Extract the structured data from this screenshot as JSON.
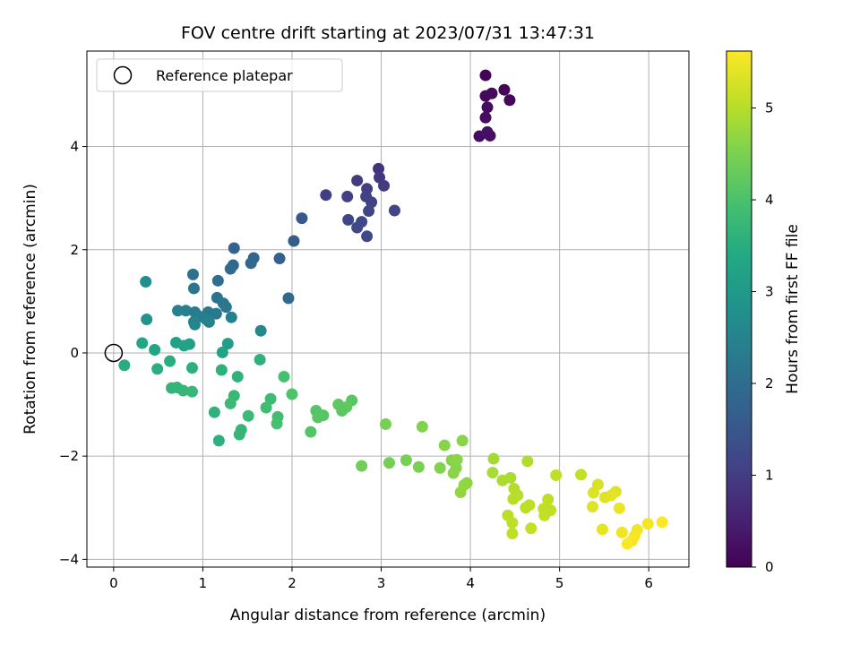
{
  "chart_data": {
    "type": "scatter",
    "title": "FOV centre drift starting at 2023/07/31 13:47:31",
    "xlabel": "Angular distance from reference (arcmin)",
    "ylabel": "Rotation from reference (arcmin)",
    "xlim": [
      -0.3,
      6.45
    ],
    "ylim": [
      -4.15,
      5.85
    ],
    "xticks": [
      0,
      1,
      2,
      3,
      4,
      5,
      6
    ],
    "yticks": [
      -4,
      -2,
      0,
      2,
      4
    ],
    "grid": true,
    "legend": {
      "placement": "top-left",
      "entries": [
        "Reference platepar"
      ]
    },
    "reference_point": {
      "x": 0,
      "y": 0,
      "label": "Reference platepar"
    },
    "colorbar": {
      "label": "Hours from first FF file",
      "colormap": "viridis",
      "range": [
        0,
        5.62
      ],
      "ticks": [
        0,
        1,
        2,
        3,
        4,
        5
      ]
    },
    "points": [
      {
        "x": 4.17,
        "y": 5.38,
        "c": 0.05
      },
      {
        "x": 4.38,
        "y": 5.1,
        "c": 0.08
      },
      {
        "x": 4.44,
        "y": 4.9,
        "c": 0.1
      },
      {
        "x": 4.24,
        "y": 5.03,
        "c": 0.12
      },
      {
        "x": 4.17,
        "y": 4.98,
        "c": 0.14
      },
      {
        "x": 4.19,
        "y": 4.76,
        "c": 0.16
      },
      {
        "x": 4.17,
        "y": 4.56,
        "c": 0.18
      },
      {
        "x": 4.1,
        "y": 4.2,
        "c": 0.2
      },
      {
        "x": 4.19,
        "y": 4.28,
        "c": 0.22
      },
      {
        "x": 4.22,
        "y": 4.21,
        "c": 0.24
      },
      {
        "x": 2.97,
        "y": 3.57,
        "c": 0.85
      },
      {
        "x": 2.98,
        "y": 3.4,
        "c": 0.9
      },
      {
        "x": 2.73,
        "y": 3.34,
        "c": 0.95
      },
      {
        "x": 3.03,
        "y": 3.24,
        "c": 0.98
      },
      {
        "x": 2.84,
        "y": 3.18,
        "c": 1.0
      },
      {
        "x": 2.38,
        "y": 3.06,
        "c": 1.02
      },
      {
        "x": 2.62,
        "y": 3.03,
        "c": 1.05
      },
      {
        "x": 2.83,
        "y": 3.03,
        "c": 1.08
      },
      {
        "x": 2.89,
        "y": 2.92,
        "c": 1.1
      },
      {
        "x": 3.15,
        "y": 2.76,
        "c": 1.12
      },
      {
        "x": 2.86,
        "y": 2.75,
        "c": 1.15
      },
      {
        "x": 2.63,
        "y": 2.58,
        "c": 1.18
      },
      {
        "x": 2.78,
        "y": 2.54,
        "c": 1.2
      },
      {
        "x": 2.73,
        "y": 2.43,
        "c": 1.22
      },
      {
        "x": 2.84,
        "y": 2.26,
        "c": 1.25
      },
      {
        "x": 2.11,
        "y": 2.61,
        "c": 1.55
      },
      {
        "x": 2.02,
        "y": 2.17,
        "c": 1.62
      },
      {
        "x": 1.35,
        "y": 2.03,
        "c": 1.8
      },
      {
        "x": 1.86,
        "y": 1.83,
        "c": 1.7
      },
      {
        "x": 1.57,
        "y": 1.84,
        "c": 1.85
      },
      {
        "x": 1.54,
        "y": 1.74,
        "c": 1.88
      },
      {
        "x": 1.34,
        "y": 1.7,
        "c": 1.92
      },
      {
        "x": 1.31,
        "y": 1.63,
        "c": 1.95
      },
      {
        "x": 0.89,
        "y": 1.52,
        "c": 2.1
      },
      {
        "x": 1.17,
        "y": 1.4,
        "c": 2.05
      },
      {
        "x": 0.36,
        "y": 1.38,
        "c": 2.75
      },
      {
        "x": 0.9,
        "y": 1.25,
        "c": 2.2
      },
      {
        "x": 1.96,
        "y": 1.06,
        "c": 1.9
      },
      {
        "x": 1.16,
        "y": 1.07,
        "c": 2.15
      },
      {
        "x": 1.23,
        "y": 0.96,
        "c": 2.18
      },
      {
        "x": 1.26,
        "y": 0.89,
        "c": 2.22
      },
      {
        "x": 0.72,
        "y": 0.82,
        "c": 2.4
      },
      {
        "x": 0.81,
        "y": 0.82,
        "c": 2.42
      },
      {
        "x": 0.91,
        "y": 0.79,
        "c": 2.3
      },
      {
        "x": 1.06,
        "y": 0.79,
        "c": 2.25
      },
      {
        "x": 1.15,
        "y": 0.76,
        "c": 2.28
      },
      {
        "x": 0.96,
        "y": 0.71,
        "c": 2.35
      },
      {
        "x": 1.32,
        "y": 0.69,
        "c": 2.45
      },
      {
        "x": 1.03,
        "y": 0.66,
        "c": 2.38
      },
      {
        "x": 0.37,
        "y": 0.65,
        "c": 2.85
      },
      {
        "x": 0.9,
        "y": 0.6,
        "c": 2.5
      },
      {
        "x": 1.07,
        "y": 0.6,
        "c": 2.48
      },
      {
        "x": 0.91,
        "y": 0.55,
        "c": 2.55
      },
      {
        "x": 1.65,
        "y": 0.43,
        "c": 2.6
      },
      {
        "x": 0.7,
        "y": 0.2,
        "c": 3.2
      },
      {
        "x": 0.32,
        "y": 0.19,
        "c": 3.35
      },
      {
        "x": 1.28,
        "y": 0.18,
        "c": 3.1
      },
      {
        "x": 0.85,
        "y": 0.17,
        "c": 3.15
      },
      {
        "x": 0.79,
        "y": 0.14,
        "c": 3.22
      },
      {
        "x": 0.46,
        "y": 0.06,
        "c": 3.3
      },
      {
        "x": 1.22,
        "y": 0.01,
        "c": 3.25
      },
      {
        "x": 0.12,
        "y": -0.24,
        "c": 3.45
      },
      {
        "x": 1.64,
        "y": -0.13,
        "c": 3.6
      },
      {
        "x": 0.49,
        "y": -0.31,
        "c": 3.5
      },
      {
        "x": 0.88,
        "y": -0.29,
        "c": 3.55
      },
      {
        "x": 1.21,
        "y": -0.33,
        "c": 3.58
      },
      {
        "x": 0.63,
        "y": -0.16,
        "c": 3.52
      },
      {
        "x": 1.39,
        "y": -0.46,
        "c": 3.62
      },
      {
        "x": 1.91,
        "y": -0.46,
        "c": 3.95
      },
      {
        "x": 0.65,
        "y": -0.68,
        "c": 3.65
      },
      {
        "x": 0.71,
        "y": -0.67,
        "c": 3.67
      },
      {
        "x": 0.78,
        "y": -0.73,
        "c": 3.7
      },
      {
        "x": 0.88,
        "y": -0.75,
        "c": 3.72
      },
      {
        "x": 2.0,
        "y": -0.8,
        "c": 4.05
      },
      {
        "x": 1.35,
        "y": -0.83,
        "c": 3.75
      },
      {
        "x": 1.76,
        "y": -0.89,
        "c": 3.85
      },
      {
        "x": 1.31,
        "y": -0.98,
        "c": 3.78
      },
      {
        "x": 2.52,
        "y": -1.0,
        "c": 4.2
      },
      {
        "x": 2.67,
        "y": -0.92,
        "c": 4.15
      },
      {
        "x": 2.61,
        "y": -1.05,
        "c": 4.22
      },
      {
        "x": 1.71,
        "y": -1.06,
        "c": 3.88
      },
      {
        "x": 2.27,
        "y": -1.12,
        "c": 4.1
      },
      {
        "x": 2.35,
        "y": -1.21,
        "c": 4.12
      },
      {
        "x": 2.29,
        "y": -1.25,
        "c": 4.14
      },
      {
        "x": 1.13,
        "y": -1.15,
        "c": 3.6
      },
      {
        "x": 1.51,
        "y": -1.22,
        "c": 3.8
      },
      {
        "x": 1.84,
        "y": -1.24,
        "c": 3.92
      },
      {
        "x": 2.56,
        "y": -1.12,
        "c": 4.18
      },
      {
        "x": 1.83,
        "y": -1.37,
        "c": 3.95
      },
      {
        "x": 3.05,
        "y": -1.38,
        "c": 4.45
      },
      {
        "x": 3.46,
        "y": -1.43,
        "c": 4.55
      },
      {
        "x": 1.43,
        "y": -1.49,
        "c": 3.68
      },
      {
        "x": 1.41,
        "y": -1.58,
        "c": 3.7
      },
      {
        "x": 2.21,
        "y": -1.53,
        "c": 4.1
      },
      {
        "x": 1.18,
        "y": -1.7,
        "c": 3.55
      },
      {
        "x": 3.91,
        "y": -1.7,
        "c": 4.62
      },
      {
        "x": 3.71,
        "y": -1.79,
        "c": 4.6
      },
      {
        "x": 3.79,
        "y": -2.08,
        "c": 4.58
      },
      {
        "x": 3.85,
        "y": -2.07,
        "c": 4.64
      },
      {
        "x": 2.78,
        "y": -2.19,
        "c": 4.4
      },
      {
        "x": 3.09,
        "y": -2.13,
        "c": 4.42
      },
      {
        "x": 3.28,
        "y": -2.08,
        "c": 4.48
      },
      {
        "x": 3.42,
        "y": -2.21,
        "c": 4.5
      },
      {
        "x": 3.66,
        "y": -2.23,
        "c": 4.56
      },
      {
        "x": 3.84,
        "y": -2.23,
        "c": 4.6
      },
      {
        "x": 3.81,
        "y": -2.33,
        "c": 4.62
      },
      {
        "x": 4.26,
        "y": -2.05,
        "c": 4.85
      },
      {
        "x": 4.64,
        "y": -2.1,
        "c": 4.95
      },
      {
        "x": 3.96,
        "y": -2.52,
        "c": 4.66
      },
      {
        "x": 3.93,
        "y": -2.56,
        "c": 4.68
      },
      {
        "x": 3.89,
        "y": -2.7,
        "c": 4.7
      },
      {
        "x": 4.25,
        "y": -2.32,
        "c": 4.88
      },
      {
        "x": 4.36,
        "y": -2.47,
        "c": 4.9
      },
      {
        "x": 4.45,
        "y": -2.42,
        "c": 4.92
      },
      {
        "x": 4.49,
        "y": -2.63,
        "c": 4.98
      },
      {
        "x": 4.53,
        "y": -2.76,
        "c": 5.0
      },
      {
        "x": 4.48,
        "y": -2.83,
        "c": 5.02
      },
      {
        "x": 4.96,
        "y": -2.37,
        "c": 5.05
      },
      {
        "x": 5.24,
        "y": -2.36,
        "c": 5.1
      },
      {
        "x": 4.62,
        "y": -3.0,
        "c": 5.04
      },
      {
        "x": 4.66,
        "y": -2.95,
        "c": 5.06
      },
      {
        "x": 4.82,
        "y": -3.02,
        "c": 5.08
      },
      {
        "x": 4.87,
        "y": -2.84,
        "c": 5.07
      },
      {
        "x": 4.9,
        "y": -3.05,
        "c": 5.09
      },
      {
        "x": 4.83,
        "y": -3.15,
        "c": 5.12
      },
      {
        "x": 4.42,
        "y": -3.15,
        "c": 5.03
      },
      {
        "x": 4.47,
        "y": -3.29,
        "c": 5.05
      },
      {
        "x": 4.68,
        "y": -3.4,
        "c": 5.1
      },
      {
        "x": 4.47,
        "y": -3.5,
        "c": 5.06
      },
      {
        "x": 5.43,
        "y": -2.55,
        "c": 5.3
      },
      {
        "x": 5.63,
        "y": -2.69,
        "c": 5.35
      },
      {
        "x": 5.58,
        "y": -2.76,
        "c": 5.38
      },
      {
        "x": 5.51,
        "y": -2.8,
        "c": 5.36
      },
      {
        "x": 5.38,
        "y": -2.71,
        "c": 5.32
      },
      {
        "x": 5.37,
        "y": -2.98,
        "c": 5.34
      },
      {
        "x": 5.67,
        "y": -3.01,
        "c": 5.45
      },
      {
        "x": 5.48,
        "y": -3.42,
        "c": 5.42
      },
      {
        "x": 5.7,
        "y": -3.48,
        "c": 5.5
      },
      {
        "x": 5.87,
        "y": -3.43,
        "c": 5.52
      },
      {
        "x": 5.99,
        "y": -3.31,
        "c": 5.55
      },
      {
        "x": 6.15,
        "y": -3.28,
        "c": 5.6
      },
      {
        "x": 5.84,
        "y": -3.55,
        "c": 5.57
      },
      {
        "x": 5.81,
        "y": -3.64,
        "c": 5.58
      },
      {
        "x": 5.76,
        "y": -3.7,
        "c": 5.59
      }
    ]
  }
}
